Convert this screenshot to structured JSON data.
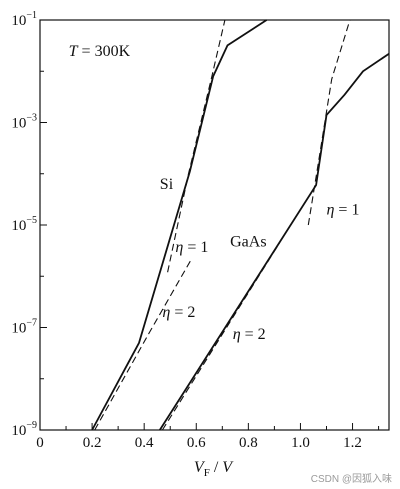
{
  "chart_data": {
    "type": "line",
    "title": "",
    "xlabel": "V_F / V",
    "ylabel": "",
    "x_ticks": [
      0,
      0.2,
      0.4,
      0.6,
      0.8,
      1.0,
      1.2
    ],
    "x_tick_labels": [
      "0",
      "0.2",
      "0.4",
      "0.6",
      "0.8",
      "1.0",
      "1.2"
    ],
    "xlim": [
      0,
      1.34
    ],
    "y_scale": "log",
    "ylim": [
      1e-09,
      0.1
    ],
    "y_ticks": [
      1e-09,
      1e-07,
      1e-05,
      0.001,
      0.1
    ],
    "y_tick_labels": [
      {
        "base": "10",
        "exp": "−9"
      },
      {
        "base": "10",
        "exp": "−7"
      },
      {
        "base": "10",
        "exp": "−5"
      },
      {
        "base": "10",
        "exp": "−3"
      },
      {
        "base": "10",
        "exp": "−1"
      }
    ],
    "grid": false,
    "series": [
      {
        "name": "Si",
        "style": "solid",
        "x": [
          0.2,
          0.38,
          0.575,
          0.665,
          0.72,
          0.87
        ],
        "y": [
          1e-09,
          5e-08,
          0.00011,
          0.008,
          0.032,
          0.1
        ]
      },
      {
        "name": "",
        "style": "dashed",
        "x": [
          0.49,
          0.57,
          0.66,
          0.71
        ],
        "y": [
          1.2e-06,
          0.0001,
          0.008,
          0.1
        ]
      },
      {
        "name": "",
        "style": "dashed",
        "x": [
          0.21,
          0.42,
          0.58
        ],
        "y": [
          1e-09,
          8e-08,
          2.1e-06
        ]
      },
      {
        "name": "GaAs",
        "style": "solid",
        "x": [
          0.46,
          1.06,
          1.1,
          1.17,
          1.24,
          1.34
        ],
        "y": [
          1e-09,
          6e-05,
          0.0014,
          0.0035,
          0.01,
          0.022
        ]
      },
      {
        "name": "",
        "style": "dashed",
        "x": [
          1.03,
          1.07,
          1.12,
          1.19
        ],
        "y": [
          1e-05,
          0.00018,
          0.007,
          0.1
        ]
      },
      {
        "name": "",
        "style": "dashed",
        "x": [
          0.47,
          0.92
        ],
        "y": [
          1e-09,
          4.5e-06
        ]
      }
    ],
    "annotations": [
      {
        "text": "T = 300K",
        "x": 0.11,
        "y": 0.02
      },
      {
        "text": "Si",
        "x": 0.46,
        "y": 5e-05
      },
      {
        "text": "η = 1",
        "x": 0.52,
        "y": 3e-06
      },
      {
        "text": "η = 2",
        "x": 0.47,
        "y": 1.6e-07
      },
      {
        "text": "GaAs",
        "x": 0.73,
        "y": 3.8e-06
      },
      {
        "text": "η = 1",
        "x": 1.1,
        "y": 1.6e-05
      },
      {
        "text": "η = 2",
        "x": 0.74,
        "y": 6e-08
      }
    ]
  },
  "watermark": "CSDN @因狐入味"
}
